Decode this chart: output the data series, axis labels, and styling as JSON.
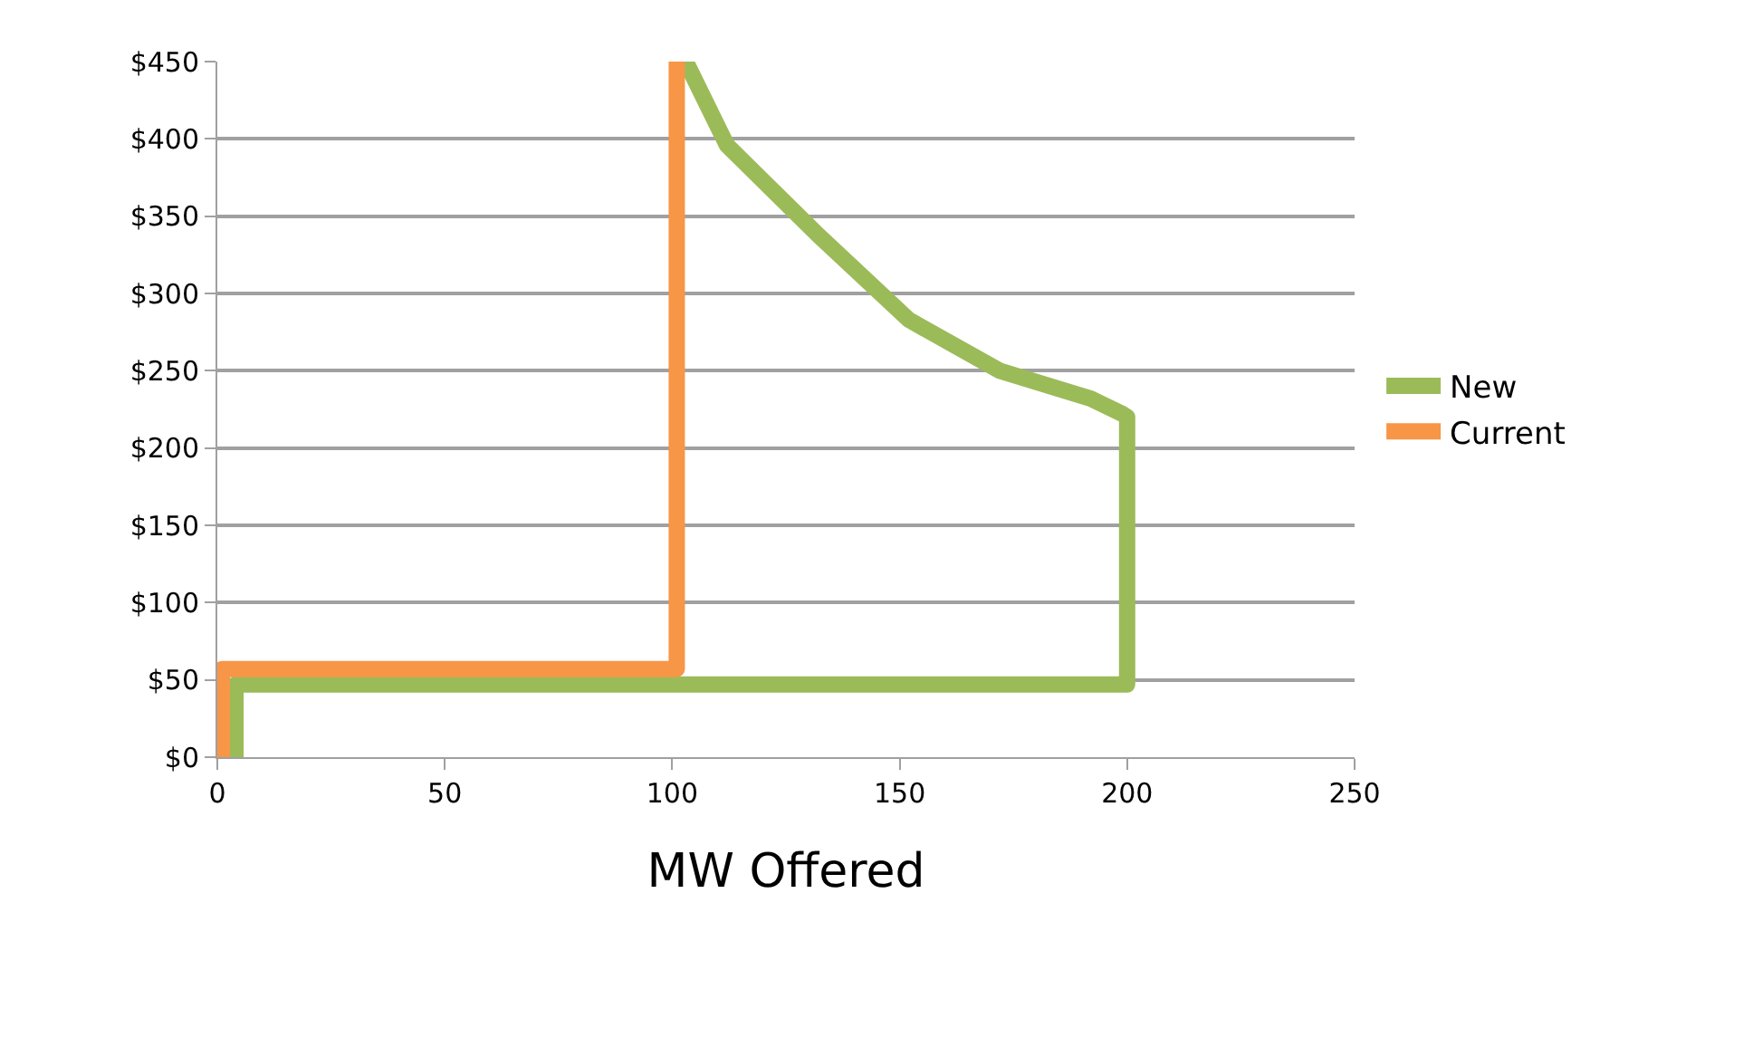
{
  "chart_data": {
    "type": "line",
    "xlabel": "MW Offered",
    "xlim": [
      0,
      250
    ],
    "xticks": [
      0,
      50,
      100,
      150,
      200,
      250
    ],
    "ylim": [
      0,
      450
    ],
    "yticks": [
      {
        "value": 0,
        "label": "$0"
      },
      {
        "value": 50,
        "label": "$50"
      },
      {
        "value": 100,
        "label": "$100"
      },
      {
        "value": 150,
        "label": "$150"
      },
      {
        "value": 200,
        "label": "$200"
      },
      {
        "value": 250,
        "label": "$250"
      },
      {
        "value": 300,
        "label": "$300"
      },
      {
        "value": 350,
        "label": "$350"
      },
      {
        "value": 400,
        "label": "$400"
      },
      {
        "value": 450,
        "label": "$450"
      }
    ],
    "grid": "y",
    "legend": "right",
    "line_style": "solid",
    "series": [
      {
        "name": "New",
        "color": "#9bbb59",
        "x": [
          4,
          4,
          200,
          200,
          199,
          192,
          172,
          152,
          132,
          112,
          103
        ],
        "values": [
          0,
          47,
          47,
          220,
          222,
          232,
          250,
          283,
          338,
          396,
          450
        ]
      },
      {
        "name": "Current",
        "color": "#f79646",
        "x": [
          1,
          1,
          101,
          101
        ],
        "values": [
          0,
          57,
          57,
          450
        ]
      }
    ]
  }
}
